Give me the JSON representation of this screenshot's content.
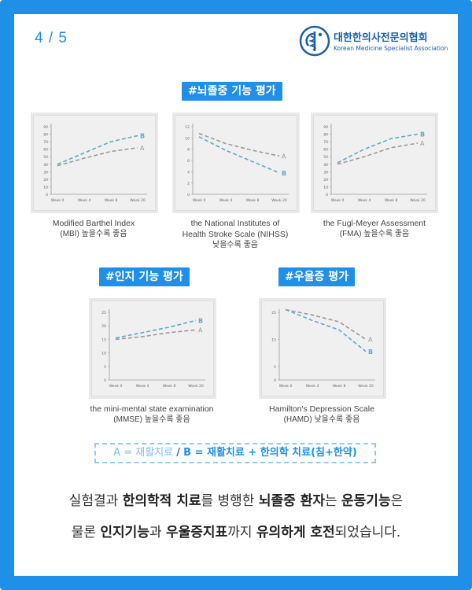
{
  "page_number": "4 / 5",
  "org": {
    "name_ko": "대한한의사전문의협회",
    "name_en": "Korean Medicine Specialist Association"
  },
  "sections": {
    "stroke": "#뇌졸중 기능 평가",
    "cognitive": "#인지 기능 평가",
    "depression": "#우울증 평가"
  },
  "colors": {
    "accent": "#1f8fe8",
    "series_a": "#9a9a9a",
    "series_b": "#5aa9c9"
  },
  "chart_data": [
    {
      "type": "line",
      "id": "mbi",
      "categories": [
        "Week 0",
        "Week 4",
        "Week 8",
        "Week 20"
      ],
      "yticks": [
        0,
        10,
        20,
        30,
        40,
        50,
        60,
        70,
        80,
        90
      ],
      "ylim": [
        0,
        90
      ],
      "series": [
        {
          "name": "A",
          "values": [
            38,
            48,
            57,
            62
          ]
        },
        {
          "name": "B",
          "values": [
            40,
            55,
            70,
            78
          ]
        }
      ],
      "caption": [
        "Modified Barthel Index",
        "(MBI) 높을수록 좋음"
      ]
    },
    {
      "type": "line",
      "id": "nihss",
      "categories": [
        "Week 0",
        "Week 4",
        "Week 8",
        "Week 20"
      ],
      "yticks": [
        0,
        2,
        4,
        6,
        8,
        10,
        12
      ],
      "ylim": [
        0,
        12
      ],
      "series": [
        {
          "name": "A",
          "values": [
            10.8,
            9.0,
            7.8,
            6.8
          ]
        },
        {
          "name": "B",
          "values": [
            10.2,
            7.8,
            5.8,
            3.8
          ]
        }
      ],
      "caption": [
        "the National Institutes of",
        "Health Stroke Scale (NIHSS)",
        "낮을수록 좋음"
      ]
    },
    {
      "type": "line",
      "id": "fma",
      "categories": [
        "Week 0",
        "Week 4",
        "Week 8",
        "Week 20"
      ],
      "yticks": [
        0,
        10,
        20,
        30,
        40,
        50,
        60,
        70,
        80,
        90
      ],
      "ylim": [
        0,
        90
      ],
      "series": [
        {
          "name": "A",
          "values": [
            40,
            50,
            62,
            68
          ]
        },
        {
          "name": "B",
          "values": [
            42,
            60,
            74,
            80
          ]
        }
      ],
      "caption": [
        "the Fugl-Meyer Assessment",
        "(FMA) 높을수록 좋음"
      ]
    },
    {
      "type": "line",
      "id": "mmse",
      "categories": [
        "Week 0",
        "Week 4",
        "Week 8",
        "Week 20"
      ],
      "yticks": [
        0,
        5,
        10,
        15,
        20,
        25
      ],
      "ylim": [
        0,
        25
      ],
      "series": [
        {
          "name": "A",
          "values": [
            15,
            16,
            17.5,
            18.5
          ]
        },
        {
          "name": "B",
          "values": [
            15.5,
            17.5,
            19.5,
            22
          ]
        }
      ],
      "caption": [
        "the mini-mental state examination",
        "(MMSE) 높을수록 좋음"
      ]
    },
    {
      "type": "line",
      "id": "hamd",
      "categories": [
        "Week 0",
        "Week 4",
        "Week 8",
        "Week 20"
      ],
      "yticks": [
        0,
        5,
        15,
        25
      ],
      "ylim": [
        0,
        25
      ],
      "series": [
        {
          "name": "A",
          "values": [
            26,
            24,
            21.5,
            15
          ]
        },
        {
          "name": "B",
          "values": [
            26,
            22,
            18.5,
            10.5
          ]
        }
      ],
      "caption": [
        "Hamilton's Depression Scale",
        "(HAMD) 낮을수록 좋음"
      ]
    }
  ],
  "legend": {
    "a": "A = 재활치료",
    "sep": "/",
    "b": "B = 재활치료 + 한의학 치료(침+한약)"
  },
  "summary": {
    "line1": [
      {
        "t": "실험결과 ",
        "b": false
      },
      {
        "t": "한의학적 치료",
        "b": true
      },
      {
        "t": "를 병행한 ",
        "b": false
      },
      {
        "t": "뇌졸중 환자",
        "b": true
      },
      {
        "t": "는 ",
        "b": false
      },
      {
        "t": "운동기능",
        "b": true
      },
      {
        "t": "은",
        "b": false
      }
    ],
    "line2": [
      {
        "t": "물론 ",
        "b": false
      },
      {
        "t": "인지기능",
        "b": true
      },
      {
        "t": "과 ",
        "b": false
      },
      {
        "t": "우울증지표",
        "b": true
      },
      {
        "t": "까지 ",
        "b": false
      },
      {
        "t": "유의하게 호전",
        "b": true
      },
      {
        "t": "되었습니다.",
        "b": false
      }
    ]
  }
}
